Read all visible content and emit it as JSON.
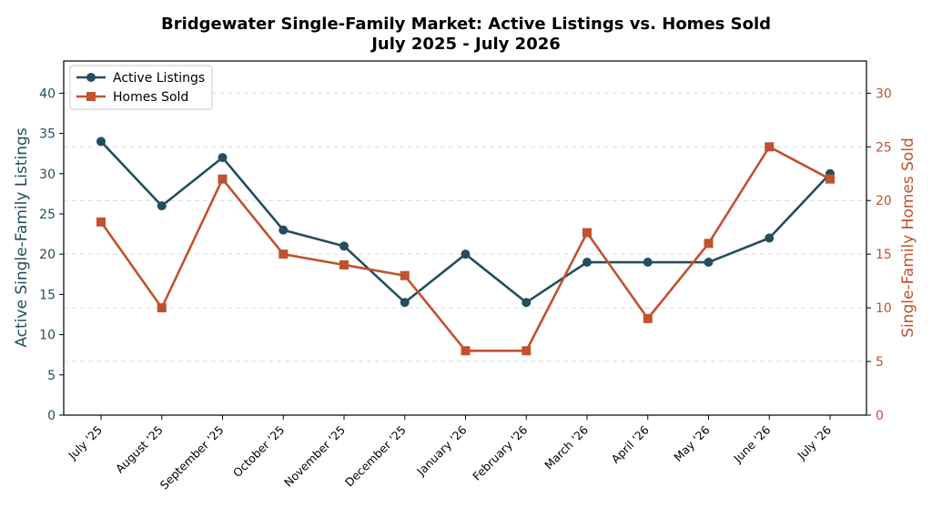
{
  "chart_data": {
    "type": "line",
    "title": "Bridgewater Single-Family Market: Active Listings vs. Homes Sold",
    "subtitle": "July 2025 - July 2026",
    "categories": [
      "July '25",
      "August '25",
      "September '25",
      "October '25",
      "November '25",
      "December '25",
      "January '26",
      "February '26",
      "March '26",
      "April '26",
      "May '26",
      "June '26",
      "July '26"
    ],
    "series": [
      {
        "name": "Active Listings",
        "axis": "left",
        "marker": "circle",
        "color": "#234e5e",
        "values": [
          34,
          26,
          32,
          23,
          21,
          14,
          20,
          14,
          19,
          19,
          19,
          22,
          30
        ]
      },
      {
        "name": "Homes Sold",
        "axis": "right",
        "marker": "square",
        "color": "#c0522f",
        "values": [
          18,
          10,
          22,
          15,
          14,
          13,
          6,
          6,
          17,
          9,
          16,
          25,
          22
        ]
      }
    ],
    "ylabel": "Active Single-Family Listings",
    "y2label": "Single-Family Homes Sold",
    "ylim": [
      0,
      44
    ],
    "y2lim": [
      0,
      33
    ],
    "yticks": [
      0,
      5,
      10,
      15,
      20,
      25,
      30,
      35,
      40
    ],
    "y2ticks": [
      0,
      5,
      10,
      15,
      20,
      25,
      30
    ],
    "grid": true,
    "legend_position": "top-left"
  }
}
